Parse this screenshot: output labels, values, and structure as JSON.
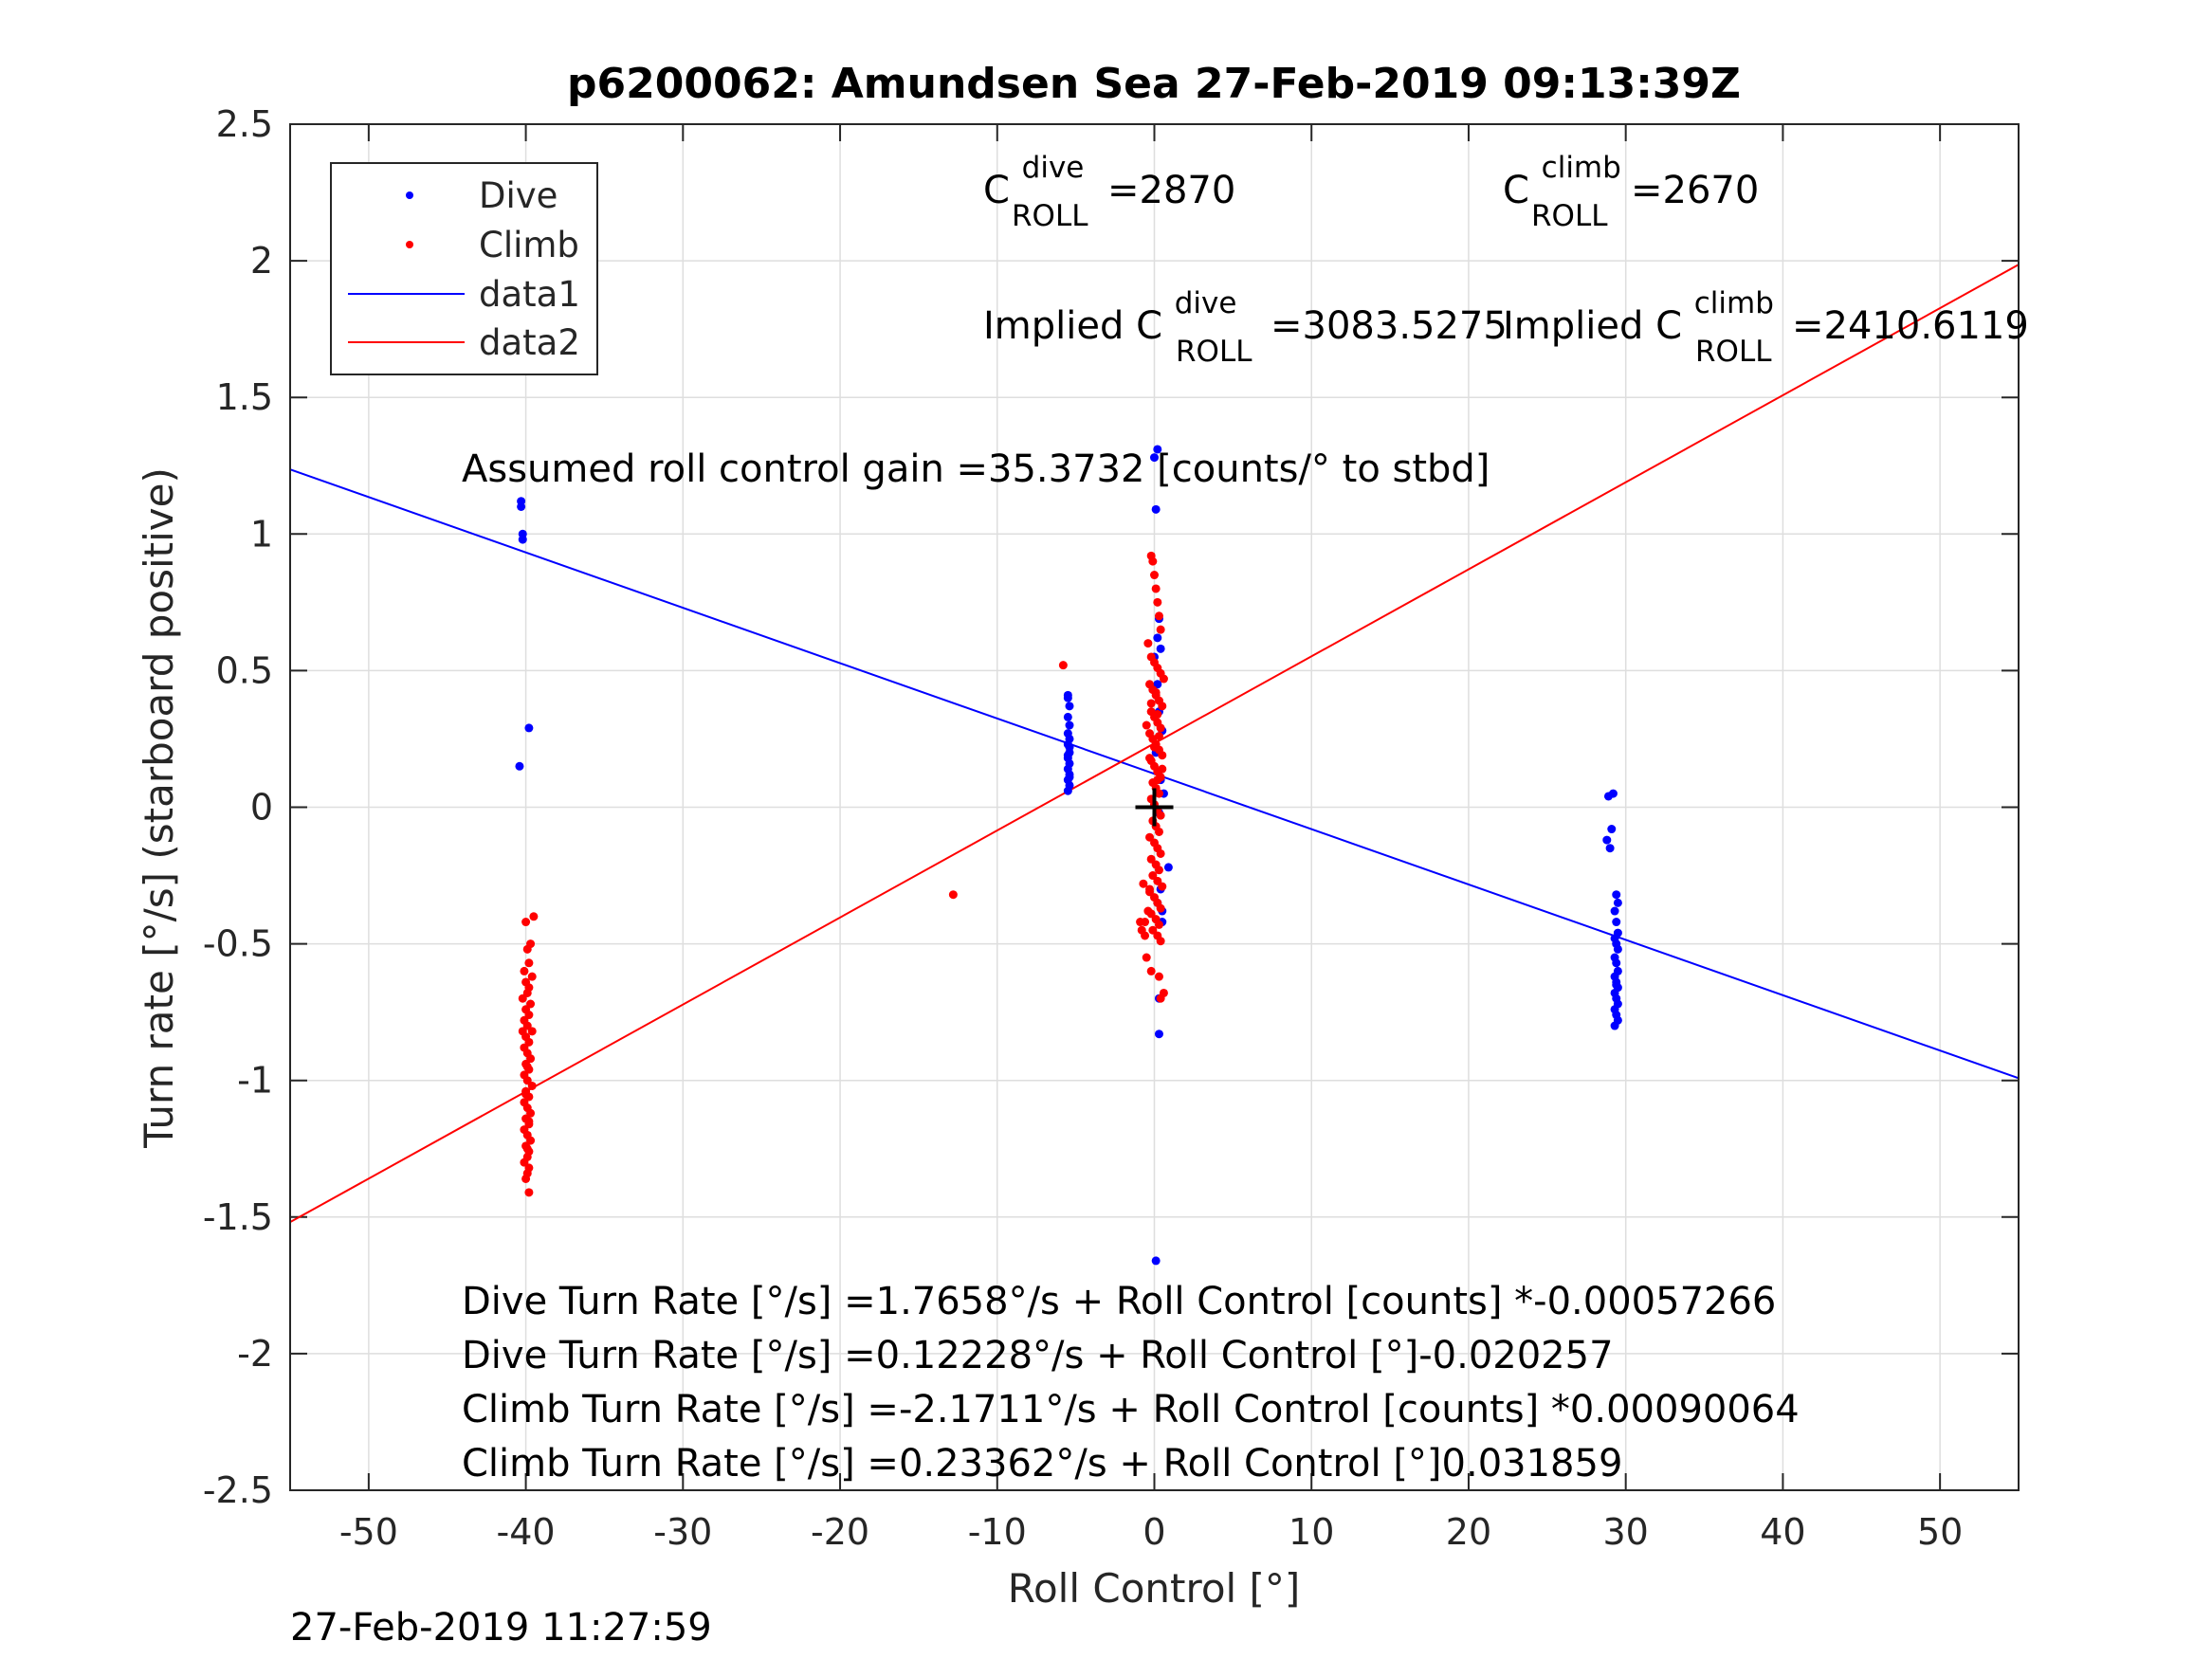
{
  "chart_data": {
    "type": "scatter",
    "title": "p6200062: Amundsen Sea 27-Feb-2019 09:13:39Z",
    "xlabel": "Roll Control [°]",
    "ylabel": "Turn rate [°/s] (starboard positive)",
    "xlim": [
      -55,
      55
    ],
    "ylim": [
      -2.5,
      2.5
    ],
    "xticks": [
      -50,
      -40,
      -30,
      -20,
      -10,
      0,
      10,
      20,
      30,
      40,
      50
    ],
    "yticks": [
      2.5,
      2,
      1.5,
      1,
      0.5,
      0,
      -0.5,
      -1,
      -1.5,
      -2,
      -2.5
    ],
    "xtick_labels": [
      "-50",
      "-40",
      "-30",
      "-20",
      "-10",
      "0",
      "10",
      "20",
      "30",
      "40",
      "50"
    ],
    "ytick_labels": [
      "2.5",
      "2",
      "1.5",
      "1",
      "0.5",
      "0",
      "-0.5",
      "-1",
      "-1.5",
      "-2",
      "-2.5"
    ],
    "grid": true,
    "legend": {
      "position": "top-left",
      "entries": [
        {
          "name": "Dive",
          "kind": "marker",
          "color": "#0000ff"
        },
        {
          "name": "Climb",
          "kind": "marker",
          "color": "#ff0000"
        },
        {
          "name": "data1",
          "kind": "line",
          "color": "#0000ff"
        },
        {
          "name": "data2",
          "kind": "line",
          "color": "#ff0000"
        }
      ]
    },
    "series": [
      {
        "name": "Dive",
        "color": "#0000ff",
        "x": [
          -40.3,
          -40.3,
          -40.2,
          -40.2,
          -39.8,
          -40.4,
          -5.5,
          -5.5,
          -5.4,
          -5.5,
          -5.4,
          -5.5,
          -5.4,
          -5.5,
          -5.4,
          -5.5,
          -5.4,
          -5.5,
          -5.4,
          -5.5,
          -5.4,
          -5.5,
          -5.4,
          -5.5,
          -5.4,
          0.2,
          0.0,
          0.1,
          0.3,
          0.2,
          0.4,
          0.0,
          0.2,
          0.3,
          0.5,
          0.1,
          0.4,
          0.6,
          0.3,
          0.9,
          0.2,
          0.5,
          0.5,
          0.3,
          0.1,
          0.3,
          0.4,
          28.9,
          29.2,
          29.1,
          28.8,
          29.0,
          29.4,
          29.5,
          29.3,
          29.4,
          29.5,
          29.3,
          29.4,
          29.5,
          29.3,
          29.4,
          29.5,
          29.3,
          29.4,
          29.5,
          29.3,
          29.4,
          29.5,
          29.3,
          29.4,
          29.5,
          29.3,
          29.4
        ],
        "y": [
          1.12,
          1.1,
          1.0,
          0.98,
          0.29,
          0.15,
          0.41,
          0.4,
          0.37,
          0.33,
          0.3,
          0.27,
          0.25,
          0.23,
          0.2,
          0.18,
          0.16,
          0.14,
          0.12,
          0.1,
          0.08,
          0.06,
          0.22,
          0.19,
          0.11,
          1.31,
          1.28,
          1.09,
          0.69,
          0.62,
          0.58,
          0.55,
          0.45,
          0.35,
          0.28,
          0.2,
          0.1,
          0.05,
          -0.02,
          -0.22,
          -0.35,
          -0.38,
          -0.42,
          -0.7,
          -1.66,
          -0.83,
          -0.3,
          0.04,
          0.05,
          -0.08,
          -0.12,
          -0.15,
          -0.32,
          -0.35,
          -0.38,
          -0.42,
          -0.46,
          -0.48,
          -0.5,
          -0.52,
          -0.55,
          -0.57,
          -0.6,
          -0.62,
          -0.64,
          -0.66,
          -0.68,
          -0.7,
          -0.72,
          -0.74,
          -0.76,
          -0.78,
          -0.8,
          -0.65
        ],
        "line_slope": -0.020257,
        "line_intercept": 0.12228
      },
      {
        "name": "Climb",
        "color": "#ff0000",
        "x": [
          -39.5,
          -40.0,
          -39.7,
          -39.9,
          -39.8,
          -40.1,
          -39.6,
          -40.0,
          -39.8,
          -39.9,
          -40.2,
          -39.7,
          -40.0,
          -39.8,
          -40.1,
          -39.9,
          -39.6,
          -40.0,
          -39.8,
          -40.1,
          -39.9,
          -39.7,
          -40.0,
          -39.8,
          -40.1,
          -39.9,
          -39.6,
          -40.0,
          -39.8,
          -40.1,
          -39.9,
          -39.7,
          -40.0,
          -39.8,
          -40.1,
          -39.9,
          -39.7,
          -40.0,
          -39.8,
          -39.9,
          -40.1,
          -39.8,
          -39.9,
          -40.0,
          -39.8,
          -40.2,
          -39.9,
          -40.0,
          -39.8,
          -39.9,
          -5.8,
          -12.8,
          -0.8,
          -0.6,
          -0.3,
          -0.2,
          -0.1,
          0.0,
          0.1,
          0.2,
          0.3,
          0.4,
          -0.4,
          -0.2,
          0.0,
          0.2,
          0.4,
          0.6,
          -0.3,
          -0.1,
          0.1,
          0.3,
          0.5,
          -0.2,
          0.0,
          0.2,
          0.4,
          -0.3,
          -0.1,
          0.1,
          0.3,
          0.5,
          -0.2,
          0.0,
          0.2,
          0.4,
          -0.1,
          0.1,
          0.3,
          -0.2,
          0.0,
          0.2,
          0.4,
          -0.1,
          0.1,
          0.3,
          -0.3,
          0.0,
          0.2,
          0.4,
          -0.2,
          0.1,
          0.3,
          -0.1,
          0.2,
          0.5,
          -0.3,
          0.0,
          0.2,
          0.4,
          -0.2,
          0.1,
          0.3,
          -0.1,
          0.2,
          0.4,
          -0.7,
          -0.4,
          -0.9,
          -0.6,
          -0.5,
          -0.2,
          0.3,
          0.6,
          0.4,
          0.1,
          -0.2,
          0.2,
          -0.5,
          0.3,
          0.0,
          -0.3,
          0.5,
          0.2
        ],
        "y": [
          -0.4,
          -0.42,
          -0.5,
          -0.52,
          -0.57,
          -0.6,
          -0.62,
          -0.64,
          -0.66,
          -0.68,
          -0.7,
          -0.72,
          -0.74,
          -0.76,
          -0.78,
          -0.8,
          -0.82,
          -0.84,
          -0.86,
          -0.88,
          -0.9,
          -0.92,
          -0.94,
          -0.96,
          -0.98,
          -1.0,
          -1.02,
          -1.04,
          -1.06,
          -1.08,
          -1.1,
          -1.12,
          -1.14,
          -1.16,
          -1.18,
          -1.2,
          -1.22,
          -1.24,
          -1.26,
          -1.28,
          -1.3,
          -1.32,
          -1.34,
          -1.36,
          -1.41,
          -0.82,
          -0.95,
          -1.05,
          -1.15,
          -1.25,
          0.52,
          -0.32,
          -0.45,
          -0.42,
          -0.3,
          0.92,
          0.9,
          0.85,
          0.8,
          0.75,
          0.7,
          0.65,
          0.6,
          0.55,
          0.53,
          0.51,
          0.49,
          0.47,
          0.45,
          0.43,
          0.41,
          0.39,
          0.37,
          0.35,
          0.33,
          0.31,
          0.29,
          0.27,
          0.25,
          0.23,
          0.21,
          0.19,
          0.17,
          0.15,
          0.13,
          0.11,
          0.09,
          0.07,
          0.05,
          0.03,
          0.01,
          -0.01,
          -0.03,
          -0.05,
          -0.07,
          -0.09,
          -0.11,
          -0.13,
          -0.15,
          -0.17,
          -0.19,
          -0.21,
          -0.23,
          -0.25,
          -0.27,
          -0.29,
          -0.31,
          -0.33,
          -0.35,
          -0.37,
          -0.39,
          -0.41,
          -0.43,
          -0.45,
          -0.47,
          -0.49,
          -0.28,
          -0.38,
          -0.42,
          -0.47,
          -0.55,
          -0.6,
          -0.62,
          -0.68,
          -0.7,
          0.42,
          0.38,
          0.34,
          0.3,
          0.26,
          0.22,
          0.18,
          0.14,
          0.1
        ],
        "line_slope": 0.031859,
        "line_intercept": 0.23362
      }
    ],
    "reference_marker": {
      "x": 0,
      "y": 0,
      "symbol": "+"
    },
    "annotations": {
      "c_roll_dive": {
        "symbol": "C",
        "sup": "dive",
        "sub": "ROLL",
        "value": "=2870"
      },
      "c_roll_climb": {
        "symbol": "C",
        "sup": "climb",
        "sub": "ROLL",
        "value": "=2670"
      },
      "implied_dive": {
        "prefix": "Implied C",
        "sup": "dive",
        "sub": "ROLL",
        "value": "=3083.5275"
      },
      "implied_climb": {
        "prefix": "Implied C",
        "sup": "climb",
        "sub": "ROLL",
        "value": "=2410.6119"
      },
      "gain": "Assumed roll control gain =35.3732 [counts/° to stbd]",
      "fit_lines": [
        "Dive Turn Rate [°/s] =1.7658°/s + Roll Control [counts] *-0.00057266",
        "Dive Turn Rate [°/s] =0.12228°/s + Roll Control [°]-0.020257",
        "Climb Turn Rate [°/s] =-2.1711°/s + Roll Control [counts] *0.00090064",
        "Climb Turn Rate [°/s] =0.23362°/s + Roll Control [°]0.031859"
      ]
    },
    "timestamp": "27-Feb-2019 11:27:59"
  }
}
